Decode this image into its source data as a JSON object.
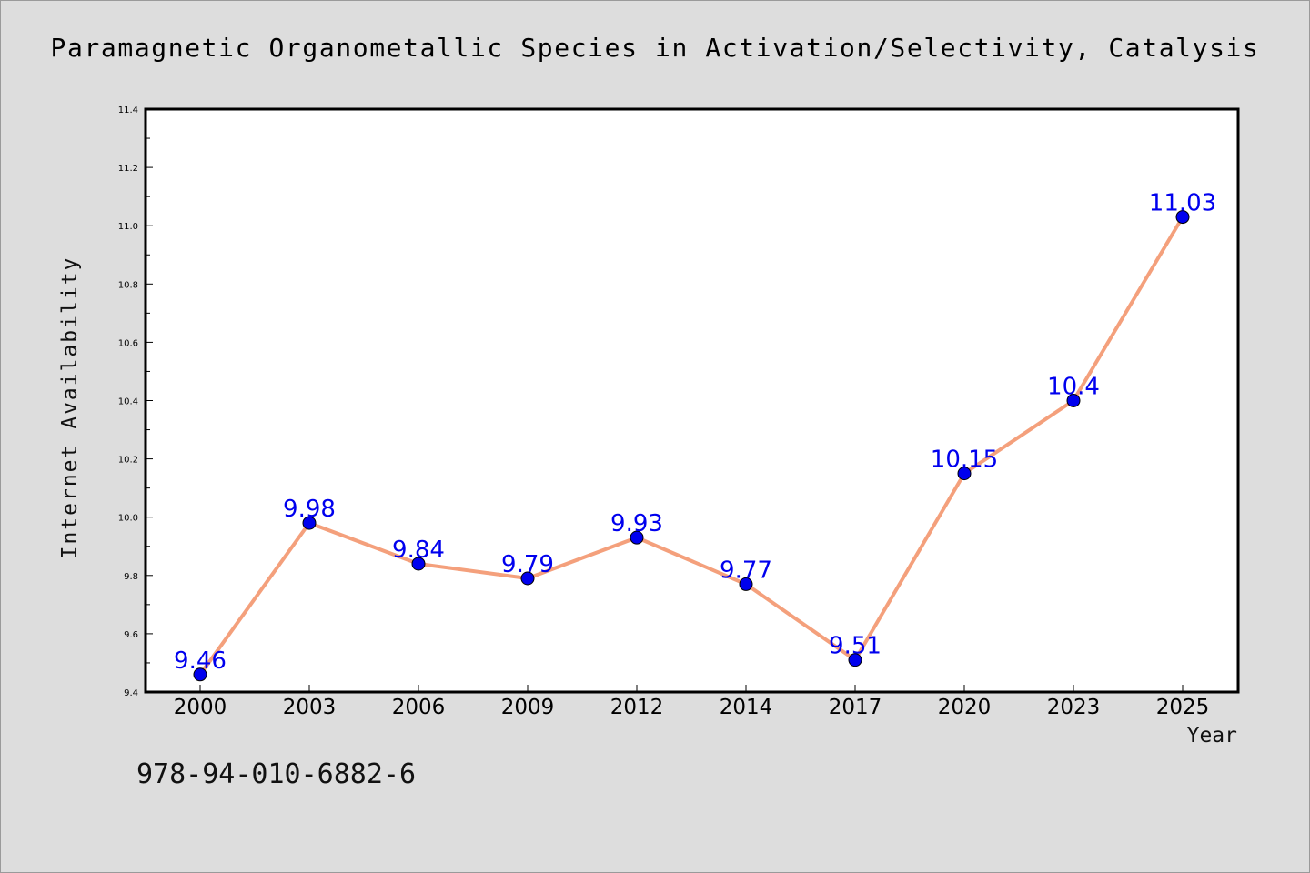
{
  "chart_data": {
    "type": "line",
    "title": "Paramagnetic Organometallic Species in Activation/Selectivity, Catalysis",
    "xlabel": "Year",
    "ylabel": "Internet Availability",
    "categories": [
      "2000",
      "2003",
      "2006",
      "2009",
      "2012",
      "2014",
      "2017",
      "2020",
      "2023",
      "2025"
    ],
    "series": [
      {
        "values": [
          9.46,
          9.98,
          9.84,
          9.79,
          9.93,
          9.77,
          9.51,
          10.15,
          10.4,
          11.03
        ],
        "data_labels": [
          "9.46",
          "9.98",
          "9.84",
          "9.79",
          "9.93",
          "9.77",
          "9.51",
          "10.15",
          "10.4",
          "11.03"
        ],
        "line_color": "#f4a07c",
        "marker_color": "#0000ee"
      }
    ],
    "ylim": [
      9.4,
      11.4
    ],
    "y_ticks": [
      "9.4",
      "9.6",
      "9.8",
      "10.0",
      "10.2",
      "10.4",
      "10.6",
      "10.8",
      "11.0",
      "11.2",
      "11.4"
    ],
    "grid": false,
    "legend": "none"
  },
  "footer": {
    "isbn": "978-94-010-6882-6"
  },
  "colors": {
    "background": "#dddddd",
    "plot_background": "#ffffff",
    "line": "#f4a07c",
    "marker": "#0000ee",
    "data_label": "#0000ee"
  }
}
